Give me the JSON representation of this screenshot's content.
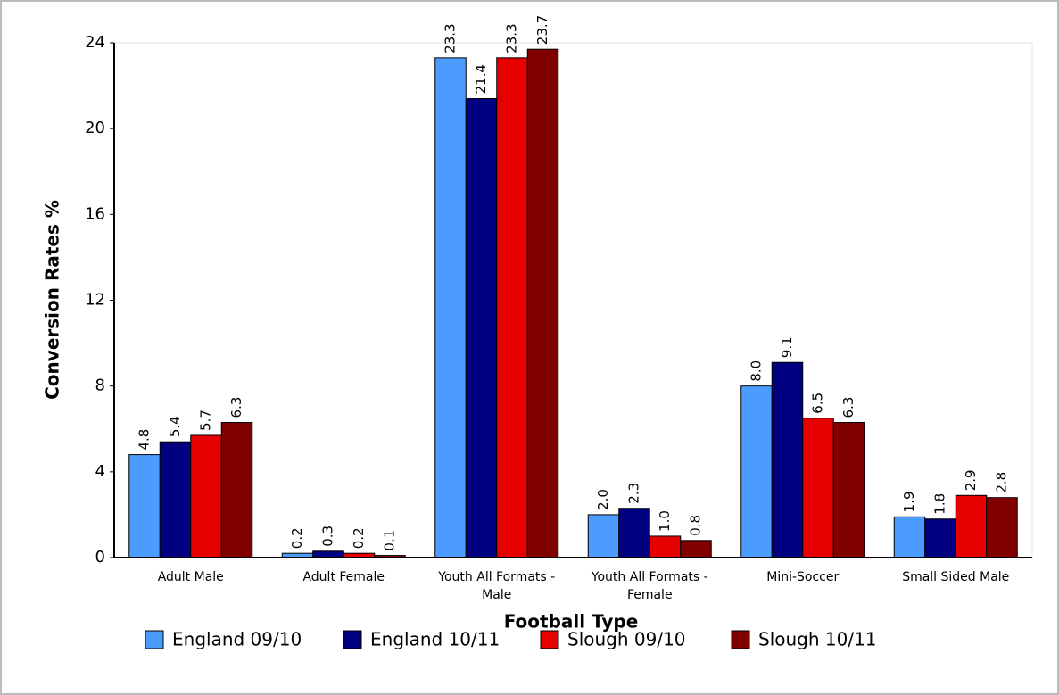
{
  "chart_data": {
    "type": "bar",
    "x_label": "Football Type",
    "y_label": "Conversion Rates %",
    "categories": [
      "Adult Male",
      "Adult Female",
      "Youth All Formats - Male",
      "Youth All Formats - Female",
      "Mini-Soccer",
      "Small Sided Male"
    ],
    "series": [
      {
        "name": "England 09/10",
        "color": "#4c9bff",
        "values": [
          4.8,
          0.2,
          23.3,
          2.0,
          8.0,
          1.9
        ],
        "value_labels": [
          "4.8",
          "0.2",
          "23.3",
          "2.0",
          "8.0",
          "1.9"
        ]
      },
      {
        "name": "England 10/11",
        "color": "#000080",
        "values": [
          5.4,
          0.3,
          21.4,
          2.3,
          9.1,
          1.8
        ],
        "value_labels": [
          "5.4",
          "0.3",
          "21.4",
          "2.3",
          "9.1",
          "1.8"
        ]
      },
      {
        "name": "Slough 09/10",
        "color": "#e60000",
        "values": [
          5.7,
          0.2,
          23.3,
          1.0,
          6.5,
          2.9
        ],
        "value_labels": [
          "5.7",
          "0.2",
          "23.3",
          "1.0",
          "6.5",
          "2.9"
        ]
      },
      {
        "name": "Slough 10/11",
        "color": "#800000",
        "values": [
          6.3,
          0.1,
          23.7,
          0.8,
          6.3,
          2.8
        ],
        "value_labels": [
          "6.3",
          "0.1",
          "23.7",
          "0.8",
          "6.3",
          "2.8"
        ]
      }
    ],
    "ylim": [
      0,
      24
    ],
    "yticks": [
      0,
      4,
      8,
      12,
      16,
      20,
      24
    ],
    "grid": false
  }
}
